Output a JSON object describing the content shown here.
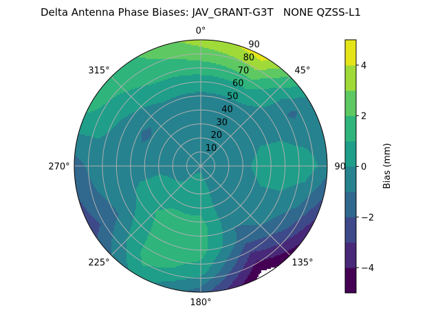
{
  "chart_data": {
    "type": "heatmap",
    "subtype": "polar filled contour",
    "title": "Delta Antenna Phase Biases: JAV_GRANT-G3T   NONE QZSS-L1",
    "theta_tick_labels": [
      "0°",
      "45°",
      "90°",
      "135°",
      "180°",
      "225°",
      "270°",
      "315°"
    ],
    "theta_direction": "clockwise",
    "theta_zero": "top",
    "r_tick_labels": [
      "10",
      "20",
      "30",
      "40",
      "50",
      "60",
      "70",
      "80",
      "90"
    ],
    "r_range": [
      0,
      90
    ],
    "grid": true,
    "colorbar": {
      "label": "Bias (mm)",
      "tick_labels": [
        "−4",
        "−2",
        "0",
        "2",
        "4"
      ],
      "tick_values": [
        -4,
        -2,
        0,
        2,
        4
      ],
      "range": [
        -5,
        5
      ],
      "levels": [
        -5,
        -4,
        -3,
        -2,
        -1,
        0,
        1,
        2,
        3,
        4,
        5
      ],
      "colors": [
        "#440154",
        "#482878",
        "#3e4989",
        "#31688e",
        "#26828e",
        "#1f9e89",
        "#2fb47c",
        "#5ec962",
        "#a0da39",
        "#e5e419"
      ],
      "placement": "right"
    },
    "field": {
      "azimuth_deg": [
        0,
        30,
        60,
        90,
        120,
        150,
        180,
        210,
        240,
        270,
        300,
        330
      ],
      "zenith_deg": [
        0,
        15,
        30,
        45,
        60,
        75,
        90
      ],
      "bias_mm": [
        [
          -0.2,
          -0.5,
          -0.5,
          -0.5,
          0.5,
          2.0,
          3.5
        ],
        [
          -0.2,
          -0.5,
          -0.5,
          -0.5,
          0.5,
          2.5,
          4.5
        ],
        [
          -0.2,
          -0.5,
          -0.5,
          -0.3,
          -0.5,
          -1.2,
          -0.5
        ],
        [
          -0.2,
          -0.5,
          -0.3,
          0.5,
          0.7,
          0.6,
          -0.5
        ],
        [
          -0.2,
          -0.5,
          -0.5,
          -0.3,
          -0.5,
          -1.5,
          -3.5
        ],
        [
          -0.2,
          -0.3,
          -0.5,
          -0.8,
          -1.5,
          -3.5,
          -5.5
        ],
        [
          -0.2,
          0.5,
          0.7,
          1.5,
          1.5,
          0.5,
          -1.5
        ],
        [
          -0.2,
          0.3,
          0.7,
          1.5,
          1.5,
          1.5,
          0.5
        ],
        [
          -0.2,
          -0.3,
          0.5,
          0.5,
          -0.5,
          -1.5,
          -2.5
        ],
        [
          -0.2,
          -0.3,
          -0.3,
          -0.5,
          -0.5,
          -0.5,
          -1.5
        ],
        [
          -0.2,
          -0.5,
          -0.5,
          -1.2,
          -0.3,
          0.5,
          1.5
        ],
        [
          -0.2,
          -0.5,
          -0.5,
          -0.5,
          0.5,
          1.5,
          2.0
        ]
      ]
    }
  }
}
